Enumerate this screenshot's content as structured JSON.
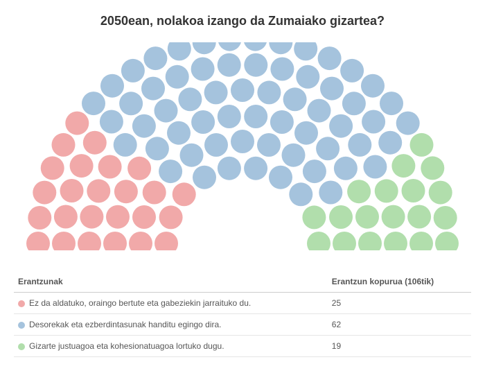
{
  "title": "2050ean, nolakoa izango da Zumaiako gizartea?",
  "chart": {
    "type": "parliament",
    "total_seats": 106,
    "dot_radius": 17,
    "dot_gap": 3,
    "background_color": "#ffffff",
    "series": [
      {
        "label": "Ez da aldatuko, oraingo bertute eta gabeziekin jarraituko du.",
        "value": 25,
        "color": "#f1a9a9"
      },
      {
        "label": "Desorekak eta ezberdintasunak handitu egingo dira.",
        "value": 62,
        "color": "#a5c3dd"
      },
      {
        "label": "Gizarte justuagoa eta kohesionatuagoa lortuko dugu.",
        "value": 19,
        "color": "#b1deac"
      }
    ]
  },
  "table": {
    "header_left": "Erantzunak",
    "header_right": "Erantzun kopurua (106tik)"
  }
}
